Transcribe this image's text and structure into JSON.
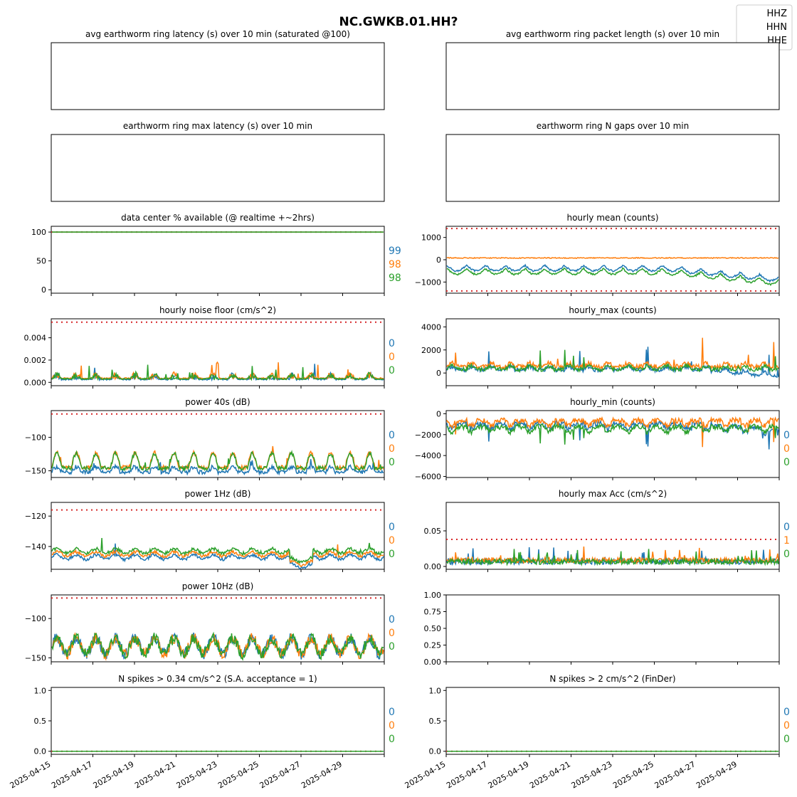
{
  "figure": {
    "title": "NC.GWKB.01.HH?",
    "legend": {
      "placement": "top-right",
      "entries": [
        "HHZ",
        "HHN",
        "HHE"
      ]
    },
    "colors": {
      "HHZ": "#1f77b4",
      "HHN": "#ff7f0e",
      "HHE": "#2ca02c",
      "threshold": "#d62728"
    }
  },
  "date_ticks": [
    "2025-04-15",
    "2025-04-17",
    "2025-04-19",
    "2025-04-21",
    "2025-04-23",
    "2025-04-25",
    "2025-04-27",
    "2025-04-29"
  ],
  "chart_data": [
    {
      "id": "p0",
      "type": "line",
      "title": "avg earthworm ring latency (s)   over 10 min (saturated @100)",
      "empty": true
    },
    {
      "id": "p1",
      "type": "line",
      "title": "avg earthworm ring packet length (s)   over 10 min",
      "empty": true
    },
    {
      "id": "p2",
      "type": "line",
      "title": "earthworm ring max latency (s)   over 10 min",
      "empty": true
    },
    {
      "id": "p3",
      "type": "line",
      "title": "earthworm ring N gaps   over 10 min",
      "empty": true
    },
    {
      "id": "p4",
      "type": "line",
      "title": "data center % available (@ realtime +~2hrs)",
      "ylim": [
        -6,
        110
      ],
      "yticks": [
        "100",
        "50",
        "0"
      ],
      "ytick_values": [
        100,
        50,
        0
      ],
      "thresholds": [
        100
      ],
      "gen": "flat",
      "series": [
        {
          "name": "HHZ",
          "base": 100
        },
        {
          "name": "HHN",
          "base": 100
        },
        {
          "name": "HHE",
          "base": 100
        }
      ],
      "side_labels": [
        "99",
        "98",
        "98"
      ]
    },
    {
      "id": "p5",
      "type": "line",
      "title": "hourly mean (counts)",
      "ylim": [
        -1500,
        1500
      ],
      "yticks": [
        "1000",
        "0",
        "−1000"
      ],
      "ytick_values": [
        1000,
        0,
        -1000
      ],
      "thresholds": [
        1400,
        -1400
      ],
      "gen": "mean",
      "series": [
        {
          "name": "HHZ",
          "base": -250
        },
        {
          "name": "HHN",
          "base": 80
        },
        {
          "name": "HHE",
          "base": -400
        }
      ],
      "side_labels": []
    },
    {
      "id": "p6",
      "type": "line",
      "title": "hourly noise floor (cm/s^2)",
      "ylim": [
        -0.0003,
        0.0057
      ],
      "yticks": [
        "0.004",
        "0.002",
        "0.000"
      ],
      "ytick_values": [
        0.004,
        0.002,
        0
      ],
      "thresholds": [
        0.0054
      ],
      "gen": "noise",
      "series": [
        {
          "name": "HHZ",
          "base": 0.0002
        },
        {
          "name": "HHN",
          "base": 0.0003
        },
        {
          "name": "HHE",
          "base": 0.00025
        }
      ],
      "side_labels": [
        "0",
        "0",
        "0"
      ]
    },
    {
      "id": "p7",
      "type": "line",
      "title": "hourly_max (counts)",
      "ylim": [
        -1100,
        4700
      ],
      "yticks": [
        "4000",
        "2000",
        "0"
      ],
      "ytick_values": [
        4000,
        2000,
        0
      ],
      "thresholds": [],
      "gen": "max",
      "series": [
        {
          "name": "HHZ",
          "base": 200
        },
        {
          "name": "HHN",
          "base": 500
        },
        {
          "name": "HHE",
          "base": 250
        }
      ],
      "side_labels": []
    },
    {
      "id": "p8",
      "type": "line",
      "title": "power 40s (dB)",
      "ylim": [
        -160,
        -60
      ],
      "yticks": [
        "−100",
        "−150"
      ],
      "ytick_values": [
        -100,
        -150
      ],
      "thresholds": [
        -65
      ],
      "gen": "p40",
      "series": [
        {
          "name": "HHZ",
          "base": -152
        },
        {
          "name": "HHN",
          "base": -145
        },
        {
          "name": "HHE",
          "base": -146
        }
      ],
      "side_labels": [
        "0",
        "0",
        "0"
      ]
    },
    {
      "id": "p9",
      "type": "line",
      "title": "hourly_min (counts)",
      "ylim": [
        -6100,
        300
      ],
      "yticks": [
        "0",
        "−2000",
        "−4000",
        "−6000"
      ],
      "ytick_values": [
        0,
        -2000,
        -4000,
        -6000
      ],
      "thresholds": [],
      "gen": "min",
      "series": [
        {
          "name": "HHZ",
          "base": -700
        },
        {
          "name": "HHN",
          "base": -400
        },
        {
          "name": "HHE",
          "base": -1000
        }
      ],
      "side_labels": [
        "0",
        "0",
        "0"
      ]
    },
    {
      "id": "p10",
      "type": "line",
      "title": "power 1Hz (dB)",
      "ylim": [
        -155,
        -111
      ],
      "yticks": [
        "−120",
        "−140"
      ],
      "ytick_values": [
        -120,
        -140
      ],
      "thresholds": [
        -116
      ],
      "gen": "p1",
      "series": [
        {
          "name": "HHZ",
          "base": -147
        },
        {
          "name": "HHN",
          "base": -145
        },
        {
          "name": "HHE",
          "base": -143
        }
      ],
      "side_labels": [
        "0",
        "0",
        "0"
      ]
    },
    {
      "id": "p11",
      "type": "line",
      "title": "hourly max Acc (cm/s^2)",
      "ylim": [
        -0.004,
        0.09
      ],
      "yticks": [
        "0.05",
        "0.00"
      ],
      "ytick_values": [
        0.05,
        0
      ],
      "thresholds": [
        0.038
      ],
      "gen": "acc",
      "series": [
        {
          "name": "HHZ",
          "base": 0.006
        },
        {
          "name": "HHN",
          "base": 0.008
        },
        {
          "name": "HHE",
          "base": 0.006
        }
      ],
      "side_labels": [
        "0",
        "1",
        "0"
      ]
    },
    {
      "id": "p12",
      "type": "line",
      "title": "power 10Hz (dB)",
      "ylim": [
        -155,
        -70
      ],
      "yticks": [
        "−100",
        "−150"
      ],
      "ytick_values": [
        -100,
        -150
      ],
      "thresholds": [
        -74
      ],
      "gen": "p10",
      "series": [
        {
          "name": "HHZ",
          "base": -135
        },
        {
          "name": "HHN",
          "base": -135
        },
        {
          "name": "HHE",
          "base": -135
        }
      ],
      "side_labels": [
        "0",
        "0",
        "0"
      ]
    },
    {
      "id": "p13",
      "type": "line",
      "title": "",
      "ylim": [
        0,
        1
      ],
      "yticks": [
        "1.00",
        "0.75",
        "0.50",
        "0.25",
        "0.00"
      ],
      "ytick_values": [
        1,
        0.75,
        0.5,
        0.25,
        0
      ],
      "empty": true,
      "axes_only": true
    },
    {
      "id": "p14",
      "type": "line",
      "title": "N spikes > 0.34 cm/s^2 (S.A. acceptance = 1)",
      "ylim": [
        -0.05,
        1.05
      ],
      "yticks": [
        "1.0",
        "0.5",
        "0.0"
      ],
      "ytick_values": [
        1,
        0.5,
        0
      ],
      "thresholds": [
        0
      ],
      "gen": "zero",
      "series": [
        {
          "name": "HHZ",
          "base": 0
        },
        {
          "name": "HHN",
          "base": 0
        },
        {
          "name": "HHE",
          "base": 0
        }
      ],
      "side_labels": [
        "0",
        "0",
        "0"
      ]
    },
    {
      "id": "p15",
      "type": "line",
      "title": "N spikes > 2 cm/s^2 (FinDer)",
      "ylim": [
        -0.05,
        1.05
      ],
      "yticks": [
        "1.0",
        "0.5",
        "0.0"
      ],
      "ytick_values": [
        1,
        0.5,
        0
      ],
      "thresholds": [
        0
      ],
      "gen": "zero",
      "series": [
        {
          "name": "HHZ",
          "base": 0
        },
        {
          "name": "HHN",
          "base": 0
        },
        {
          "name": "HHE",
          "base": 0
        }
      ],
      "side_labels": [
        "0",
        "0",
        "0"
      ]
    }
  ]
}
